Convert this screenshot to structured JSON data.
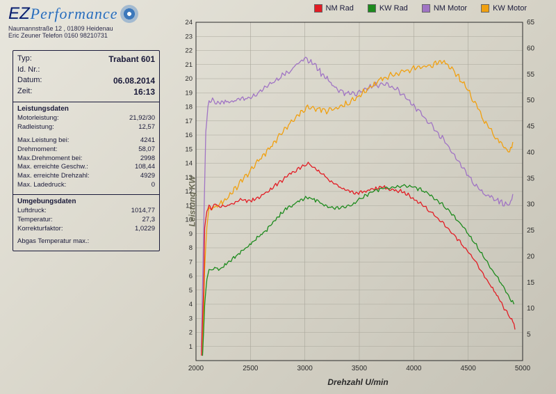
{
  "address": {
    "line1": "Naumannstraße 12 , 01809 Heidenau",
    "line2": "Eric Zeuner  Telefon 0160 98210731"
  },
  "logo": {
    "ez": "EZ",
    "perf": "Performance"
  },
  "info": {
    "typ_l": "Typ:",
    "typ_v": "Trabant 601",
    "id_l": "Id. Nr.:",
    "id_v": "",
    "datum_l": "Datum:",
    "datum_v": "06.08.2014",
    "zeit_l": "Zeit:",
    "zeit_v": "16:13",
    "leist_h": "Leistungsdaten",
    "motorl_l": "Motorleistung:",
    "motorl_v": "21,92/30",
    "radl_l": "Radleistung:",
    "radl_v": "12,57",
    "maxl_l": "Max.Leistung bei:",
    "maxl_v": "4241",
    "drehm_l": "Drehmoment:",
    "drehm_v": "58,07",
    "maxd_l": "Max.Drehmoment bei:",
    "maxd_v": "2998",
    "maxg_l": "Max. erreichte Geschw.:",
    "maxg_v": "108,44",
    "maxdz_l": "Max. erreichte Drehzahl:",
    "maxdz_v": "4929",
    "maxld_l": "Max. Ladedruck:",
    "maxld_v": "0",
    "umg_h": "Umgebungsdaten",
    "luft_l": "Luftdruck:",
    "luft_v": "1014,77",
    "temp_l": "Temperatur:",
    "temp_v": "27,3",
    "korr_l": "Korrekturfaktor:",
    "korr_v": "1,0229",
    "abgas_l": "Abgas Temperatur max.:",
    "abgas_v": ""
  },
  "legend": {
    "s1": "NM Rad",
    "s2": "KW Rad",
    "s3": "NM Motor",
    "s4": "KW Motor"
  },
  "chart": {
    "type": "line",
    "xlabel": "Drehzahl U/min",
    "ylabel_left": "Leistung KW",
    "xlim": [
      2000,
      5000
    ],
    "xtick_step": 500,
    "y1lim": [
      0,
      24
    ],
    "y1tick_step": 1,
    "y2lim": [
      0,
      65
    ],
    "y2tick_step": 5,
    "grid_color": "#a8a69a",
    "line_width": 1.3,
    "colors": {
      "nm_rad": "#e21c24",
      "kw_rad": "#1d8a1d",
      "nm_motor": "#a074c4",
      "kw_motor": "#f0a010"
    },
    "series": {
      "nm_rad": {
        "axis": "y1",
        "data": [
          [
            2050,
            0.5
          ],
          [
            2070,
            5.0
          ],
          [
            2080,
            9.5
          ],
          [
            2100,
            10.5
          ],
          [
            2120,
            11.0
          ],
          [
            2140,
            10.8
          ],
          [
            2180,
            11.1
          ],
          [
            2220,
            10.9
          ],
          [
            2280,
            11.0
          ],
          [
            2350,
            11.2
          ],
          [
            2420,
            11.4
          ],
          [
            2500,
            11.3
          ],
          [
            2580,
            11.6
          ],
          [
            2650,
            11.9
          ],
          [
            2720,
            12.4
          ],
          [
            2780,
            12.7
          ],
          [
            2850,
            13.2
          ],
          [
            2920,
            13.5
          ],
          [
            2980,
            13.8
          ],
          [
            3030,
            14.0
          ],
          [
            3080,
            13.7
          ],
          [
            3150,
            13.3
          ],
          [
            3220,
            12.8
          ],
          [
            3300,
            12.4
          ],
          [
            3380,
            12.1
          ],
          [
            3460,
            11.9
          ],
          [
            3550,
            12.0
          ],
          [
            3640,
            12.2
          ],
          [
            3720,
            12.3
          ],
          [
            3800,
            12.1
          ],
          [
            3880,
            12.0
          ],
          [
            3960,
            11.7
          ],
          [
            4050,
            11.2
          ],
          [
            4150,
            10.6
          ],
          [
            4250,
            9.9
          ],
          [
            4350,
            9.1
          ],
          [
            4450,
            8.2
          ],
          [
            4550,
            7.2
          ],
          [
            4650,
            6.0
          ],
          [
            4750,
            4.8
          ],
          [
            4830,
            3.7
          ],
          [
            4880,
            3.1
          ],
          [
            4910,
            2.8
          ],
          [
            4930,
            2.2
          ]
        ]
      },
      "kw_rad": {
        "axis": "y1",
        "data": [
          [
            2060,
            0.3
          ],
          [
            2080,
            4.0
          ],
          [
            2100,
            5.8
          ],
          [
            2120,
            6.4
          ],
          [
            2160,
            6.6
          ],
          [
            2220,
            6.5
          ],
          [
            2300,
            7.0
          ],
          [
            2380,
            7.5
          ],
          [
            2460,
            8.0
          ],
          [
            2550,
            8.6
          ],
          [
            2640,
            9.2
          ],
          [
            2720,
            9.9
          ],
          [
            2800,
            10.6
          ],
          [
            2880,
            11.0
          ],
          [
            2960,
            11.4
          ],
          [
            3040,
            11.6
          ],
          [
            3120,
            11.3
          ],
          [
            3200,
            10.9
          ],
          [
            3300,
            10.8
          ],
          [
            3400,
            10.9
          ],
          [
            3500,
            11.4
          ],
          [
            3600,
            11.9
          ],
          [
            3700,
            12.2
          ],
          [
            3800,
            12.3
          ],
          [
            3900,
            12.4
          ],
          [
            4000,
            12.3
          ],
          [
            4100,
            12.0
          ],
          [
            4200,
            11.5
          ],
          [
            4300,
            10.8
          ],
          [
            4400,
            10.0
          ],
          [
            4500,
            9.0
          ],
          [
            4600,
            7.9
          ],
          [
            4700,
            6.7
          ],
          [
            4800,
            5.5
          ],
          [
            4870,
            4.6
          ],
          [
            4920,
            4.0
          ]
        ]
      },
      "nm_motor": {
        "axis": "y2",
        "data": [
          [
            2050,
            2
          ],
          [
            2070,
            25
          ],
          [
            2090,
            44
          ],
          [
            2110,
            49
          ],
          [
            2140,
            50
          ],
          [
            2200,
            49.5
          ],
          [
            2280,
            49.5
          ],
          [
            2380,
            50
          ],
          [
            2480,
            50.5
          ],
          [
            2580,
            51.5
          ],
          [
            2680,
            53
          ],
          [
            2780,
            54.5
          ],
          [
            2880,
            56
          ],
          [
            2960,
            57.5
          ],
          [
            3020,
            58
          ],
          [
            3080,
            57
          ],
          [
            3160,
            55
          ],
          [
            3250,
            53
          ],
          [
            3350,
            51.5
          ],
          [
            3450,
            51
          ],
          [
            3550,
            52
          ],
          [
            3650,
            53
          ],
          [
            3750,
            53
          ],
          [
            3850,
            52
          ],
          [
            3950,
            50
          ],
          [
            4050,
            48
          ],
          [
            4150,
            45.5
          ],
          [
            4250,
            43
          ],
          [
            4350,
            40
          ],
          [
            4450,
            37
          ],
          [
            4550,
            34
          ],
          [
            4650,
            32
          ],
          [
            4750,
            31
          ],
          [
            4830,
            30
          ],
          [
            4880,
            30
          ],
          [
            4910,
            32
          ]
        ]
      },
      "kw_motor": {
        "axis": "y2",
        "data": [
          [
            2060,
            1
          ],
          [
            2080,
            18
          ],
          [
            2100,
            26
          ],
          [
            2120,
            29
          ],
          [
            2160,
            29.5
          ],
          [
            2220,
            30
          ],
          [
            2300,
            31.5
          ],
          [
            2400,
            34
          ],
          [
            2500,
            36.5
          ],
          [
            2600,
            39
          ],
          [
            2700,
            41.5
          ],
          [
            2800,
            44
          ],
          [
            2900,
            46.5
          ],
          [
            3000,
            48.5
          ],
          [
            3100,
            48.5
          ],
          [
            3200,
            48
          ],
          [
            3300,
            48.5
          ],
          [
            3400,
            49.5
          ],
          [
            3500,
            51
          ],
          [
            3600,
            52.5
          ],
          [
            3700,
            54
          ],
          [
            3800,
            55
          ],
          [
            3900,
            55.5
          ],
          [
            4000,
            56
          ],
          [
            4100,
            56.5
          ],
          [
            4200,
            57
          ],
          [
            4280,
            57.5
          ],
          [
            4350,
            56
          ],
          [
            4450,
            53.5
          ],
          [
            4550,
            50
          ],
          [
            4650,
            46
          ],
          [
            4750,
            43
          ],
          [
            4830,
            41
          ],
          [
            4880,
            40
          ],
          [
            4910,
            42
          ]
        ]
      }
    }
  }
}
